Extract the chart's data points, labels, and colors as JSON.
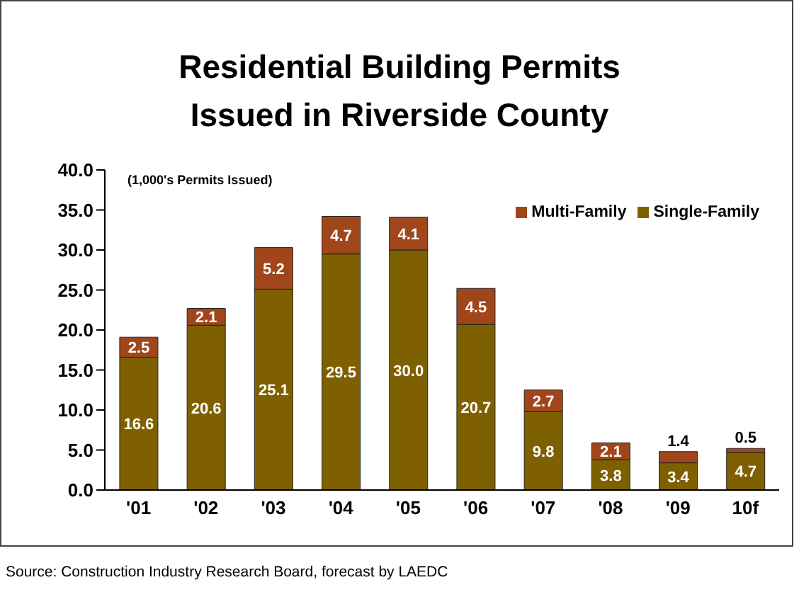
{
  "chart_data": {
    "type": "bar",
    "title": "Residential Building Permits\nIssued in Riverside County",
    "ylabel": "(1,000's Permits Issued)",
    "categories": [
      "'01",
      "'02",
      "'03",
      "'04",
      "'05",
      "'06",
      "'07",
      "'08",
      "'09",
      "10f"
    ],
    "stacked": true,
    "series": [
      {
        "name": "Single-Family",
        "color": "#7f6000",
        "values": [
          16.6,
          20.6,
          25.1,
          29.5,
          30.0,
          20.7,
          9.8,
          3.8,
          3.4,
          4.7
        ],
        "value_labels": [
          "16.6",
          "20.6",
          "25.1",
          "29.5",
          "30.0",
          "20.7",
          "9.8",
          "3.8",
          "3.4",
          "4.7"
        ]
      },
      {
        "name": "Multi-Family",
        "color": "#a0461a",
        "values": [
          2.5,
          2.1,
          5.2,
          4.7,
          4.1,
          4.5,
          2.7,
          2.1,
          1.4,
          0.5
        ],
        "value_labels": [
          "2.5",
          "2.1",
          "5.2",
          "4.7",
          "4.1",
          "4.5",
          "2.7",
          "2.1",
          "1.4",
          "0.5"
        ]
      }
    ],
    "ylim": [
      0,
      40
    ],
    "yticks": [
      {
        "value": 0,
        "label": "0.0"
      },
      {
        "value": 5,
        "label": "5.0"
      },
      {
        "value": 10,
        "label": "10.0"
      },
      {
        "value": 15,
        "label": "15.0"
      },
      {
        "value": 20,
        "label": "20.0"
      },
      {
        "value": 25,
        "label": "25.0"
      },
      {
        "value": 30,
        "label": "30.0"
      },
      {
        "value": 35,
        "label": "35.0"
      },
      {
        "value": 40,
        "label": "40.0"
      }
    ],
    "legend": "top right",
    "grid": false,
    "annotations": [
      "Source:  Construction Industry Research Board, forecast by LAEDC"
    ]
  }
}
